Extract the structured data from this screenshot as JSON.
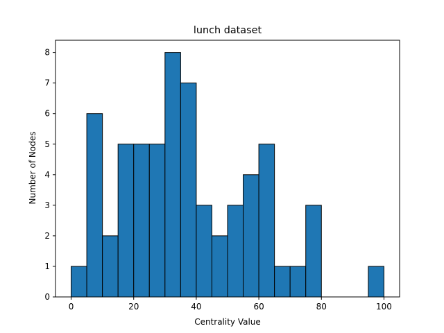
{
  "chart_data": {
    "type": "bar",
    "title": "lunch dataset",
    "xlabel": "Centrality Value",
    "ylabel": "Number of Nodes",
    "bin_edges": [
      0,
      5,
      10,
      15,
      20,
      25,
      30,
      35,
      40,
      45,
      50,
      55,
      60,
      65,
      70,
      75,
      80,
      85,
      90,
      95,
      100
    ],
    "values": [
      1,
      6,
      2,
      5,
      5,
      5,
      8,
      7,
      3,
      2,
      3,
      4,
      5,
      1,
      1,
      3,
      0,
      0,
      0,
      1
    ],
    "xlim": [
      -5,
      105
    ],
    "ylim": [
      0,
      8.4
    ],
    "xticks": [
      0,
      20,
      40,
      60,
      80,
      100
    ],
    "yticks": [
      0,
      1,
      2,
      3,
      4,
      5,
      6,
      7,
      8
    ],
    "grid": false,
    "colors": {
      "bar_fill": "#1f77b4",
      "bar_edge": "#000000"
    }
  }
}
